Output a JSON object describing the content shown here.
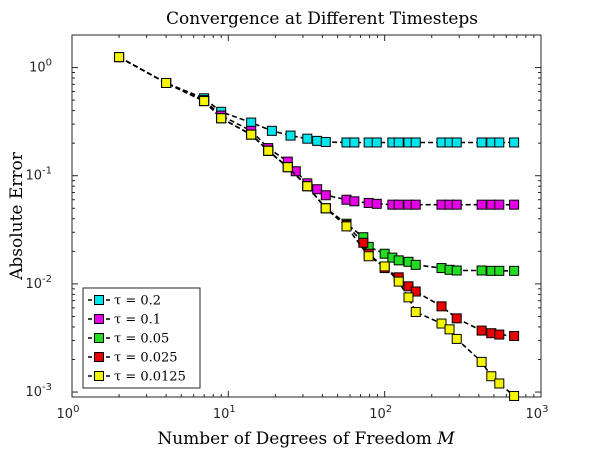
{
  "chart_data": {
    "type": "line",
    "title": "Convergence at Different Timesteps",
    "xlabel": "Number of Degrees of Freedom",
    "xlabel_symbol": "M",
    "ylabel": "Absolute Error",
    "xscale": "log",
    "yscale": "log",
    "xlim": [
      1,
      1000
    ],
    "ylim": [
      0.0009,
      2
    ],
    "x_ticks": [
      1,
      10,
      100,
      1000
    ],
    "x_tick_base": "10",
    "x_tick_exponents": [
      "0",
      "1",
      "2",
      "3"
    ],
    "y_ticks": [
      0.001,
      0.01,
      0.1,
      1
    ],
    "y_tick_base": "10",
    "y_tick_exponents": [
      "-3",
      "-2",
      "-1",
      "0"
    ],
    "grid": false,
    "legend_position": "bottom-left",
    "line_style": "dashed",
    "marker": "square",
    "series": [
      {
        "name": "τ = 0.2",
        "color": "#00e5ee",
        "x": [
          2,
          4,
          7,
          9,
          14,
          19,
          25,
          32,
          37,
          42,
          57,
          64,
          79,
          89,
          112,
          123,
          142,
          158,
          231,
          260,
          289,
          417,
          481,
          541,
          673
        ],
        "y": [
          1.25,
          0.72,
          0.52,
          0.39,
          0.31,
          0.26,
          0.235,
          0.22,
          0.21,
          0.205,
          0.203,
          0.203,
          0.203,
          0.203,
          0.203,
          0.203,
          0.203,
          0.203,
          0.203,
          0.203,
          0.203,
          0.203,
          0.203,
          0.203,
          0.203
        ]
      },
      {
        "name": "τ = 0.1",
        "color": "#e600e6",
        "x": [
          2,
          4,
          7,
          9,
          14,
          18,
          24,
          27,
          32,
          37,
          42,
          57,
          64,
          79,
          89,
          112,
          123,
          142,
          158,
          231,
          260,
          289,
          417,
          481,
          541,
          673
        ],
        "y": [
          1.25,
          0.72,
          0.5,
          0.36,
          0.26,
          0.18,
          0.135,
          0.11,
          0.085,
          0.075,
          0.066,
          0.06,
          0.058,
          0.056,
          0.055,
          0.054,
          0.054,
          0.054,
          0.054,
          0.054,
          0.054,
          0.054,
          0.054,
          0.054,
          0.054,
          0.054
        ]
      },
      {
        "name": "τ = 0.05",
        "color": "#22dd22",
        "x": [
          2,
          4,
          7,
          9,
          14,
          18,
          24,
          32,
          42,
          57,
          73,
          79,
          100,
          112,
          123,
          142,
          158,
          231,
          260,
          289,
          417,
          481,
          541,
          673
        ],
        "y": [
          1.25,
          0.72,
          0.49,
          0.34,
          0.24,
          0.17,
          0.12,
          0.08,
          0.05,
          0.036,
          0.027,
          0.022,
          0.019,
          0.0175,
          0.0165,
          0.016,
          0.015,
          0.014,
          0.0135,
          0.0133,
          0.0133,
          0.0132,
          0.0132,
          0.0132
        ]
      },
      {
        "name": "τ = 0.025",
        "color": "#e60000",
        "x": [
          2,
          4,
          7,
          9,
          14,
          18,
          24,
          32,
          42,
          57,
          73,
          79,
          100,
          123,
          142,
          158,
          231,
          289,
          417,
          481,
          541,
          673
        ],
        "y": [
          1.25,
          0.72,
          0.49,
          0.34,
          0.24,
          0.17,
          0.12,
          0.08,
          0.05,
          0.035,
          0.024,
          0.019,
          0.014,
          0.0115,
          0.0095,
          0.0085,
          0.0062,
          0.0048,
          0.0037,
          0.0035,
          0.0034,
          0.0033
        ]
      },
      {
        "name": "τ = 0.0125",
        "color": "#f5f500",
        "x": [
          2,
          4,
          7,
          9,
          14,
          18,
          24,
          32,
          42,
          57,
          79,
          100,
          123,
          142,
          158,
          231,
          260,
          289,
          417,
          481,
          541,
          673
        ],
        "y": [
          1.25,
          0.72,
          0.49,
          0.34,
          0.24,
          0.17,
          0.12,
          0.08,
          0.05,
          0.034,
          0.018,
          0.0145,
          0.0105,
          0.0075,
          0.0055,
          0.0043,
          0.0038,
          0.0031,
          0.0019,
          0.0014,
          0.0012,
          0.00092
        ]
      }
    ]
  }
}
